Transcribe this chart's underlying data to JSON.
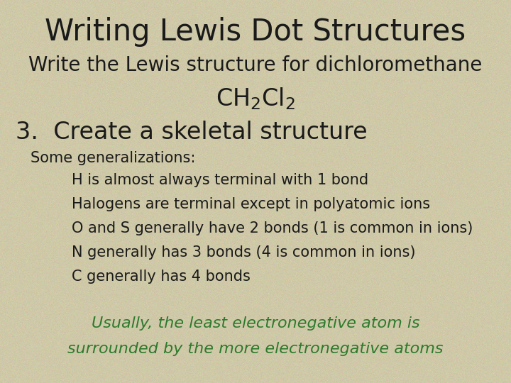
{
  "title": "Writing Lewis Dot Structures",
  "subtitle_line1": "Write the Lewis structure for dichloromethane",
  "step": "3.  Create a skeletal structure",
  "generalizations_header": "Some generalizations:",
  "bullet_points": [
    "H is almost always terminal with 1 bond",
    "Halogens are terminal except in polyatomic ions",
    "O and S generally have 2 bonds (1 is common in ions)",
    "N generally has 3 bonds (4 is common in ions)",
    "C generally has 4 bonds"
  ],
  "conclusion_line1": "Usually, the least electronegative atom is",
  "conclusion_line2": "surrounded by the more electronegative atoms",
  "bg_color": "#cfc9a8",
  "title_color": "#1a1a1a",
  "body_color": "#1a1a1a",
  "green_color": "#2d7a2d",
  "title_fontsize": 30,
  "subtitle_fontsize": 20,
  "formula_fontsize": 24,
  "step_fontsize": 24,
  "body_fontsize": 15,
  "conclusion_fontsize": 16
}
